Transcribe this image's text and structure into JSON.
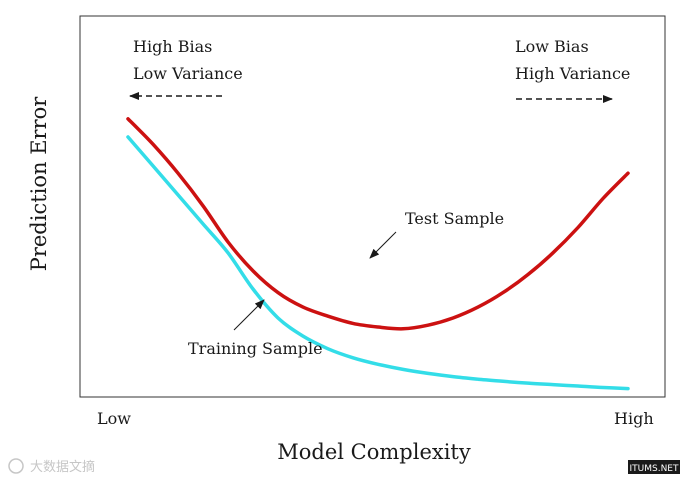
{
  "chart_data": {
    "type": "line",
    "title": "",
    "xlabel": "Model Complexity",
    "ylabel": "Prediction Error",
    "x_tick_labels": [
      "Low",
      "High"
    ],
    "xlim": [
      0,
      1
    ],
    "ylim": [
      0,
      1
    ],
    "grid": false,
    "legend": "none",
    "series": [
      {
        "name": "Test Sample",
        "color": "#cc1111",
        "x": [
          0.0,
          0.05,
          0.1,
          0.15,
          0.2,
          0.25,
          0.3,
          0.35,
          0.4,
          0.45,
          0.5,
          0.55,
          0.6,
          0.65,
          0.7,
          0.75,
          0.8,
          0.85,
          0.9,
          0.95,
          1.0
        ],
        "y": [
          0.76,
          0.69,
          0.61,
          0.52,
          0.42,
          0.34,
          0.28,
          0.24,
          0.215,
          0.195,
          0.185,
          0.18,
          0.19,
          0.21,
          0.24,
          0.28,
          0.33,
          0.39,
          0.46,
          0.54,
          0.61
        ]
      },
      {
        "name": "Training Sample",
        "color": "#33dde8",
        "x": [
          0.0,
          0.05,
          0.1,
          0.15,
          0.2,
          0.25,
          0.3,
          0.35,
          0.4,
          0.45,
          0.5,
          0.55,
          0.6,
          0.65,
          0.7,
          0.75,
          0.8,
          0.85,
          0.9,
          0.95,
          1.0
        ],
        "y": [
          0.71,
          0.63,
          0.55,
          0.47,
          0.39,
          0.29,
          0.21,
          0.16,
          0.125,
          0.1,
          0.082,
          0.068,
          0.057,
          0.048,
          0.041,
          0.035,
          0.03,
          0.026,
          0.022,
          0.018,
          0.015
        ]
      }
    ],
    "annotations": {
      "left": [
        "High Bias",
        "Low Variance"
      ],
      "right": [
        "Low Bias",
        "High Variance"
      ],
      "test_label": "Test Sample",
      "train_label": "Training Sample"
    }
  },
  "watermark": {
    "left_text": "大数据文摘",
    "right_text": "ITUMS.NET"
  }
}
